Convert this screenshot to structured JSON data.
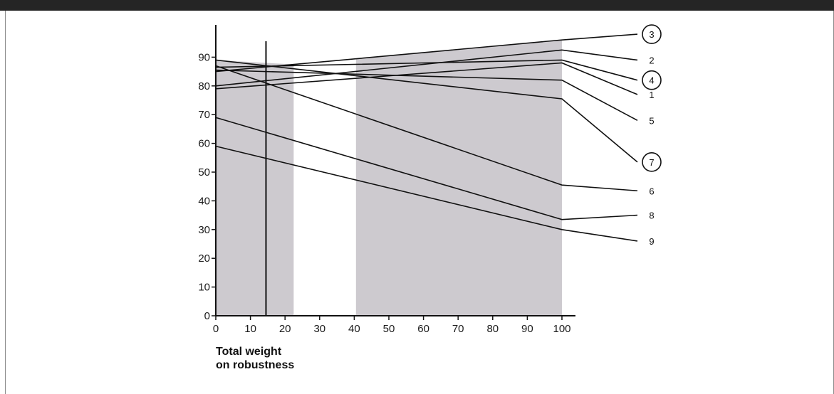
{
  "chart_data": {
    "type": "line",
    "title": "",
    "xlabel": [
      "Total weight",
      "on robustness"
    ],
    "ylabel": "",
    "xlim": [
      0,
      100
    ],
    "ylim": [
      0,
      100
    ],
    "xticks": [
      0,
      10,
      20,
      30,
      40,
      50,
      60,
      70,
      80,
      90,
      100
    ],
    "yticks": [
      0,
      10,
      20,
      30,
      40,
      50,
      60,
      70,
      80,
      90
    ],
    "shaded_ranges": [
      [
        0,
        22.5
      ],
      [
        40.5,
        100
      ]
    ],
    "reference_line_x": 14.5,
    "grid": false,
    "colors": {
      "line": "#111111",
      "shade": "#cdcacf",
      "axis": "#111111"
    },
    "series": [
      {
        "label": "1",
        "circled": false,
        "points": [
          [
            0,
            79
          ],
          [
            100,
            88
          ]
        ],
        "label_y": 77
      },
      {
        "label": "2",
        "circled": false,
        "points": [
          [
            0,
            80
          ],
          [
            100,
            92.5
          ]
        ],
        "label_y": 89
      },
      {
        "label": "3",
        "circled": true,
        "points": [
          [
            0,
            85
          ],
          [
            100,
            96
          ]
        ],
        "label_y": 98
      },
      {
        "label": "4",
        "circled": true,
        "points": [
          [
            0,
            86.5
          ],
          [
            100,
            89
          ]
        ],
        "label_y": 82
      },
      {
        "label": "5",
        "circled": false,
        "points": [
          [
            0,
            85.5
          ],
          [
            100,
            82
          ]
        ],
        "label_y": 68
      },
      {
        "label": "6",
        "circled": false,
        "points": [
          [
            0,
            87
          ],
          [
            100,
            45.5
          ]
        ],
        "label_y": 43.5
      },
      {
        "label": "7",
        "circled": true,
        "points": [
          [
            0,
            89
          ],
          [
            100,
            75.5
          ]
        ],
        "label_y": 53.5
      },
      {
        "label": "8",
        "circled": false,
        "points": [
          [
            0,
            69
          ],
          [
            100,
            33.5
          ]
        ],
        "label_y": 35
      },
      {
        "label": "9",
        "circled": false,
        "points": [
          [
            0,
            59
          ],
          [
            100,
            30
          ]
        ],
        "label_y": 26
      }
    ]
  }
}
